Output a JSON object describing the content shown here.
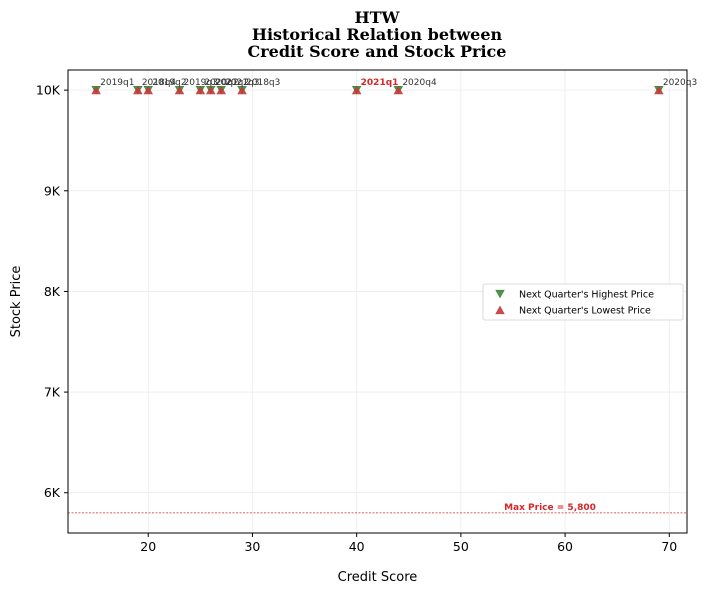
{
  "chart_data": {
    "type": "scatter",
    "title_lines": [
      "HTW",
      "Historical Relation between",
      "Credit Score and Stock Price"
    ],
    "xlabel": "Credit Score",
    "ylabel": "Stock Price",
    "xlim": [
      12.3,
      71.7
    ],
    "ylim": [
      5600,
      10200
    ],
    "x_ticks": [
      20,
      30,
      40,
      50,
      60,
      70
    ],
    "y_ticks": [
      6000,
      7000,
      8000,
      9000,
      10000
    ],
    "y_tick_labels": [
      "6K",
      "7K",
      "8K",
      "9K",
      "10K"
    ],
    "grid": true,
    "legend_position": "center-right",
    "series": [
      {
        "name": "Next Quarter's Highest Price",
        "marker": "triangle-down",
        "color": "#3a8a3a",
        "points": [
          {
            "x": 15,
            "y": 10000,
            "label": "2019q1"
          },
          {
            "x": 19,
            "y": 10000,
            "label": "2018q4"
          },
          {
            "x": 20,
            "y": 10000,
            "label": "2019q2"
          },
          {
            "x": 23,
            "y": 10000,
            "label": "2019q3"
          },
          {
            "x": 25,
            "y": 10000,
            "label": "2020q2"
          },
          {
            "x": 26,
            "y": 10000,
            "label": "2021q2"
          },
          {
            "x": 27,
            "y": 10000,
            "label": "2021q3"
          },
          {
            "x": 29,
            "y": 10000,
            "label": "2018q3"
          },
          {
            "x": 40,
            "y": 10000,
            "label": "2021q1",
            "highlight": true
          },
          {
            "x": 44,
            "y": 10000,
            "label": "2020q4"
          },
          {
            "x": 69,
            "y": 10000,
            "label": "2020q3"
          }
        ]
      },
      {
        "name": "Next Quarter's Lowest Price",
        "marker": "triangle-up",
        "color": "#c23b3b",
        "points": [
          {
            "x": 15,
            "y": 10000
          },
          {
            "x": 19,
            "y": 10000
          },
          {
            "x": 20,
            "y": 10000
          },
          {
            "x": 23,
            "y": 10000
          },
          {
            "x": 25,
            "y": 10000
          },
          {
            "x": 26,
            "y": 10000
          },
          {
            "x": 27,
            "y": 10000
          },
          {
            "x": 29,
            "y": 10000
          },
          {
            "x": 40,
            "y": 10000
          },
          {
            "x": 44,
            "y": 10000
          },
          {
            "x": 69,
            "y": 10000
          }
        ]
      }
    ],
    "reference_line": {
      "y": 5800,
      "label": "Max Price = 5,800",
      "color": "#d62728"
    }
  }
}
